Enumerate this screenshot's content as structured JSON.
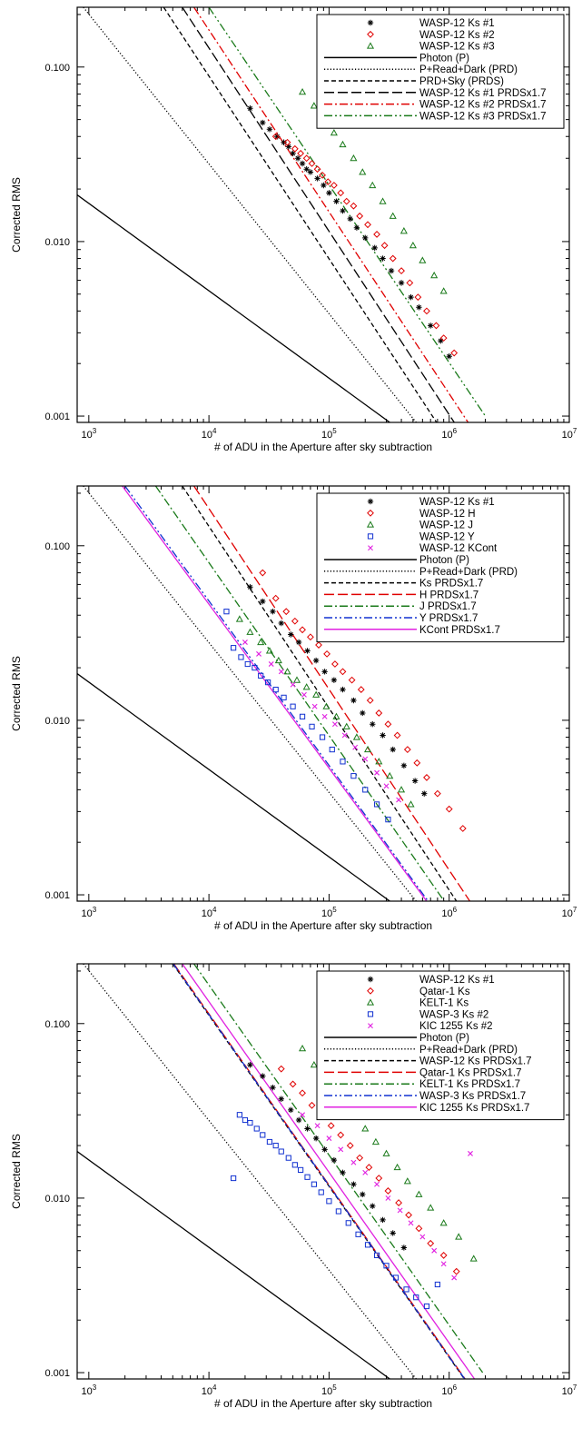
{
  "chart_data": [
    {
      "type": "scatter",
      "xlabel": "# of ADU in the Aperture after sky subtraction",
      "ylabel": "Corrected RMS",
      "x_scale": "log",
      "y_scale": "log",
      "xlim": [
        800,
        10000000
      ],
      "ylim": [
        0.00092,
        0.22
      ],
      "x_tick_labels": [
        "10^3",
        "10^4",
        "10^5",
        "10^6",
        "10^7"
      ],
      "y_tick_labels": [
        "0.001",
        "0.010",
        "0.100"
      ],
      "legend_position": "top-right",
      "series": [
        {
          "name": "WASP-12 Ks #1",
          "kind": "points",
          "marker": "asterisk",
          "color": "#000000",
          "x": [
            22000,
            28000,
            32000,
            37000,
            42000,
            46000,
            50000,
            55000,
            60000,
            65000,
            70000,
            80000,
            90000,
            100000,
            115000,
            130000,
            150000,
            170000,
            200000,
            240000,
            280000,
            330000,
            400000,
            480000,
            560000,
            700000,
            850000,
            1000000
          ],
          "y": [
            0.058,
            0.048,
            0.044,
            0.04,
            0.037,
            0.035,
            0.032,
            0.03,
            0.028,
            0.026,
            0.025,
            0.023,
            0.021,
            0.019,
            0.017,
            0.015,
            0.0135,
            0.012,
            0.0105,
            0.0092,
            0.008,
            0.0068,
            0.0058,
            0.0048,
            0.0042,
            0.0033,
            0.0027,
            0.0022
          ]
        },
        {
          "name": "WASP-12 Ks #2",
          "kind": "points",
          "marker": "diamond",
          "color": "#e00000",
          "x": [
            36000,
            45000,
            52000,
            58000,
            65000,
            72000,
            80000,
            88000,
            98000,
            110000,
            125000,
            140000,
            160000,
            180000,
            210000,
            250000,
            290000,
            340000,
            400000,
            470000,
            550000,
            650000,
            780000,
            900000,
            1100000
          ],
          "y": [
            0.04,
            0.037,
            0.034,
            0.032,
            0.03,
            0.028,
            0.026,
            0.024,
            0.022,
            0.021,
            0.019,
            0.017,
            0.016,
            0.014,
            0.0125,
            0.011,
            0.0095,
            0.008,
            0.0068,
            0.0058,
            0.0048,
            0.004,
            0.0033,
            0.0028,
            0.0023
          ]
        },
        {
          "name": "WASP-12 Ks #3",
          "kind": "points",
          "marker": "triangle",
          "color": "#1a7a1a",
          "x": [
            60000,
            75000,
            90000,
            110000,
            130000,
            160000,
            190000,
            230000,
            280000,
            340000,
            420000,
            500000,
            600000,
            750000,
            900000
          ],
          "y": [
            0.072,
            0.06,
            0.05,
            0.042,
            0.036,
            0.03,
            0.025,
            0.021,
            0.017,
            0.014,
            0.0115,
            0.0095,
            0.0078,
            0.0064,
            0.0052
          ]
        },
        {
          "name": "Photon (P)",
          "kind": "line",
          "dash": "solid",
          "color": "#000000",
          "x": [
            800,
            350000
          ],
          "y": [
            0.0185,
            0.00088
          ]
        },
        {
          "name": "P+Read+Dark (PRD)",
          "kind": "line",
          "dash": "dotted",
          "color": "#000000",
          "x": [
            900,
            560000
          ],
          "y": [
            0.22,
            0.00088
          ]
        },
        {
          "name": "PRD+Sky (PRDS)",
          "kind": "line",
          "dash": "dashed",
          "color": "#000000",
          "x": [
            4200,
            820000
          ],
          "y": [
            0.22,
            0.00088
          ]
        },
        {
          "name": "WASP-12 Ks #1 PRDSx1.7",
          "kind": "line",
          "dash": "longdash",
          "color": "#000000",
          "x": [
            6000,
            1150000
          ],
          "y": [
            0.22,
            0.00088
          ]
        },
        {
          "name": "WASP-12 Ks #2 PRDSx1.7",
          "kind": "line",
          "dash": "dashdot",
          "color": "#e00000",
          "x": [
            7500,
            1500000
          ],
          "y": [
            0.22,
            0.00088
          ]
        },
        {
          "name": "WASP-12 Ks #3 PRDSx1.7",
          "kind": "line",
          "dash": "dashdotdot",
          "color": "#1a7a1a",
          "x": [
            10000,
            2000000
          ],
          "y": [
            0.22,
            0.001
          ]
        }
      ]
    },
    {
      "type": "scatter",
      "xlabel": "# of ADU in the Aperture after sky subtraction",
      "ylabel": "Corrected RMS",
      "x_scale": "log",
      "y_scale": "log",
      "xlim": [
        800,
        10000000
      ],
      "ylim": [
        0.00092,
        0.22
      ],
      "x_tick_labels": [
        "10^3",
        "10^4",
        "10^5",
        "10^6",
        "10^7"
      ],
      "y_tick_labels": [
        "0.001",
        "0.010",
        "0.100"
      ],
      "legend_position": "top-right",
      "series": [
        {
          "name": "WASP-12 Ks #1",
          "kind": "points",
          "marker": "asterisk",
          "color": "#000000",
          "x": [
            22000,
            28000,
            34000,
            40000,
            48000,
            56000,
            66000,
            78000,
            92000,
            110000,
            130000,
            160000,
            190000,
            230000,
            280000,
            340000,
            420000,
            520000,
            620000
          ],
          "y": [
            0.058,
            0.048,
            0.042,
            0.036,
            0.031,
            0.028,
            0.025,
            0.022,
            0.019,
            0.017,
            0.015,
            0.013,
            0.011,
            0.0095,
            0.0082,
            0.0068,
            0.0055,
            0.0045,
            0.0038
          ]
        },
        {
          "name": "WASP-12 H",
          "kind": "points",
          "marker": "diamond",
          "color": "#e00000",
          "x": [
            28000,
            36000,
            44000,
            52000,
            60000,
            70000,
            82000,
            96000,
            112000,
            130000,
            155000,
            185000,
            220000,
            260000,
            310000,
            370000,
            450000,
            540000,
            650000,
            800000,
            1000000,
            1300000
          ],
          "y": [
            0.07,
            0.05,
            0.042,
            0.037,
            0.033,
            0.03,
            0.027,
            0.024,
            0.021,
            0.019,
            0.017,
            0.015,
            0.013,
            0.011,
            0.0095,
            0.0082,
            0.0068,
            0.0057,
            0.0047,
            0.0038,
            0.0031,
            0.0024
          ]
        },
        {
          "name": "WASP-12 J",
          "kind": "points",
          "marker": "triangle",
          "color": "#1a7a1a",
          "x": [
            18000,
            22000,
            27000,
            32000,
            38000,
            45000,
            54000,
            65000,
            78000,
            95000,
            115000,
            140000,
            170000,
            210000,
            260000,
            320000,
            400000,
            480000
          ],
          "y": [
            0.038,
            0.032,
            0.028,
            0.025,
            0.022,
            0.019,
            0.017,
            0.0155,
            0.014,
            0.012,
            0.0105,
            0.0092,
            0.008,
            0.0068,
            0.0058,
            0.0048,
            0.004,
            0.0033
          ]
        },
        {
          "name": "WASP-12 Y",
          "kind": "points",
          "marker": "square",
          "color": "#1030d0",
          "x": [
            14000,
            16000,
            18500,
            21000,
            24000,
            27000,
            31000,
            36000,
            42000,
            50000,
            60000,
            72000,
            88000,
            106000,
            130000,
            160000,
            200000,
            250000,
            310000
          ],
          "y": [
            0.042,
            0.026,
            0.023,
            0.021,
            0.02,
            0.018,
            0.0165,
            0.015,
            0.0135,
            0.012,
            0.0105,
            0.0092,
            0.008,
            0.0068,
            0.0058,
            0.0048,
            0.004,
            0.0033,
            0.0027
          ]
        },
        {
          "name": "WASP-12 KCont",
          "kind": "points",
          "marker": "x",
          "color": "#e020e0",
          "x": [
            20000,
            26000,
            33000,
            40000,
            50000,
            62000,
            76000,
            92000,
            112000,
            135000,
            165000,
            200000,
            250000,
            300000,
            380000
          ],
          "y": [
            0.028,
            0.024,
            0.021,
            0.019,
            0.016,
            0.014,
            0.012,
            0.0105,
            0.0095,
            0.0082,
            0.007,
            0.006,
            0.005,
            0.0042,
            0.0035
          ]
        },
        {
          "name": "Photon (P)",
          "kind": "line",
          "dash": "solid",
          "color": "#000000",
          "x": [
            800,
            350000
          ],
          "y": [
            0.0185,
            0.00088
          ]
        },
        {
          "name": "P+Read+Dark (PRD)",
          "kind": "line",
          "dash": "dotted",
          "color": "#000000",
          "x": [
            900,
            560000
          ],
          "y": [
            0.22,
            0.00088
          ]
        },
        {
          "name": "Ks PRDSx1.7",
          "kind": "line",
          "dash": "dashed",
          "color": "#000000",
          "x": [
            6000,
            1200000
          ],
          "y": [
            0.22,
            0.00088
          ]
        },
        {
          "name": "H PRDSx1.7",
          "kind": "line",
          "dash": "longdash",
          "color": "#e00000",
          "x": [
            7500,
            1550000
          ],
          "y": [
            0.22,
            0.00088
          ]
        },
        {
          "name": "J PRDSx1.7",
          "kind": "line",
          "dash": "dashdot",
          "color": "#1a7a1a",
          "x": [
            3600,
            950000
          ],
          "y": [
            0.22,
            0.00088
          ]
        },
        {
          "name": "Y PRDSx1.7",
          "kind": "line",
          "dash": "dashdotdot",
          "color": "#1030d0",
          "x": [
            2000,
            700000
          ],
          "y": [
            0.22,
            0.00088
          ]
        },
        {
          "name": "KCont PRDSx1.7",
          "kind": "line",
          "dash": "solid",
          "color": "#e020e0",
          "x": [
            1900,
            680000
          ],
          "y": [
            0.22,
            0.00088
          ]
        }
      ]
    },
    {
      "type": "scatter",
      "xlabel": "# of ADU in the Aperture after sky subtraction",
      "ylabel": "Corrected RMS",
      "x_scale": "log",
      "y_scale": "log",
      "xlim": [
        800,
        10000000
      ],
      "ylim": [
        0.00092,
        0.22
      ],
      "x_tick_labels": [
        "10^3",
        "10^4",
        "10^5",
        "10^6",
        "10^7"
      ],
      "y_tick_labels": [
        "0.001",
        "0.010",
        "0.100"
      ],
      "legend_position": "top-right",
      "series": [
        {
          "name": "WASP-12 Ks #1",
          "kind": "points",
          "marker": "asterisk",
          "color": "#000000",
          "x": [
            22000,
            28000,
            34000,
            40000,
            48000,
            56000,
            66000,
            78000,
            92000,
            110000,
            130000,
            160000,
            190000,
            230000,
            280000,
            340000,
            420000
          ],
          "y": [
            0.058,
            0.05,
            0.043,
            0.037,
            0.032,
            0.028,
            0.025,
            0.022,
            0.019,
            0.0165,
            0.014,
            0.012,
            0.0105,
            0.009,
            0.0075,
            0.0063,
            0.0052
          ]
        },
        {
          "name": "Qatar-1 Ks",
          "kind": "points",
          "marker": "diamond",
          "color": "#e00000",
          "x": [
            40000,
            50000,
            60000,
            72000,
            86000,
            104000,
            125000,
            150000,
            180000,
            215000,
            260000,
            310000,
            380000,
            460000,
            560000,
            700000,
            900000,
            1150000
          ],
          "y": [
            0.055,
            0.045,
            0.04,
            0.034,
            0.03,
            0.026,
            0.023,
            0.02,
            0.017,
            0.015,
            0.013,
            0.011,
            0.0094,
            0.008,
            0.0067,
            0.0055,
            0.0047,
            0.0038
          ]
        },
        {
          "name": "KELT-1 Ks",
          "kind": "points",
          "marker": "triangle",
          "color": "#1a7a1a",
          "x": [
            60000,
            75000,
            92000,
            112000,
            135000,
            165000,
            200000,
            245000,
            300000,
            370000,
            450000,
            560000,
            700000,
            900000,
            1200000,
            1600000
          ],
          "y": [
            0.072,
            0.058,
            0.048,
            0.041,
            0.035,
            0.03,
            0.025,
            0.021,
            0.018,
            0.015,
            0.0125,
            0.0105,
            0.0088,
            0.0072,
            0.006,
            0.0045
          ]
        },
        {
          "name": "WASP-3 Ks #2",
          "kind": "points",
          "marker": "square",
          "color": "#1030d0",
          "x": [
            16000,
            18000,
            20000,
            22000,
            25000,
            28000,
            32000,
            36000,
            40000,
            46000,
            52000,
            58000,
            66000,
            75000,
            86000,
            100000,
            120000,
            145000,
            175000,
            210000,
            250000,
            300000,
            360000,
            440000,
            530000,
            650000,
            800000
          ],
          "y": [
            0.013,
            0.03,
            0.028,
            0.027,
            0.025,
            0.023,
            0.021,
            0.02,
            0.0185,
            0.017,
            0.0155,
            0.0145,
            0.0132,
            0.012,
            0.0108,
            0.0096,
            0.0084,
            0.0072,
            0.0062,
            0.0054,
            0.0047,
            0.0041,
            0.0035,
            0.003,
            0.0027,
            0.0024,
            0.0032
          ]
        },
        {
          "name": "KIC 1255 Ks #2",
          "kind": "points",
          "marker": "x",
          "color": "#e020e0",
          "x": [
            60000,
            80000,
            100000,
            125000,
            160000,
            200000,
            250000,
            310000,
            390000,
            480000,
            600000,
            750000,
            900000,
            1100000,
            1500000
          ],
          "y": [
            0.03,
            0.026,
            0.022,
            0.019,
            0.016,
            0.014,
            0.012,
            0.01,
            0.0085,
            0.0072,
            0.006,
            0.005,
            0.0042,
            0.0035,
            0.018
          ]
        },
        {
          "name": "Photon (P)",
          "kind": "line",
          "dash": "solid",
          "color": "#000000",
          "x": [
            800,
            350000
          ],
          "y": [
            0.0185,
            0.00088
          ]
        },
        {
          "name": "P+Read+Dark (PRD)",
          "kind": "line",
          "dash": "dotted",
          "color": "#000000",
          "x": [
            900,
            560000
          ],
          "y": [
            0.22,
            0.00088
          ]
        },
        {
          "name": "WASP-12 Ks PRDSx1.7",
          "kind": "line",
          "dash": "dashed",
          "color": "#000000",
          "x": [
            5000,
            1400000
          ],
          "y": [
            0.22,
            0.00088
          ]
        },
        {
          "name": "Qatar-1 Ks PRDSx1.7",
          "kind": "line",
          "dash": "longdash",
          "color": "#e00000",
          "x": [
            5100,
            1420000
          ],
          "y": [
            0.22,
            0.00088
          ]
        },
        {
          "name": "KELT-1 Ks PRDSx1.7",
          "kind": "line",
          "dash": "dashdot",
          "color": "#1a7a1a",
          "x": [
            7500,
            1900000
          ],
          "y": [
            0.22,
            0.001
          ]
        },
        {
          "name": "WASP-3 Ks PRDSx1.7",
          "kind": "line",
          "dash": "dashdotdot",
          "color": "#1030d0",
          "x": [
            5050,
            1410000
          ],
          "y": [
            0.22,
            0.00088
          ]
        },
        {
          "name": "KIC 1255 Ks PRDSx1.7",
          "kind": "line",
          "dash": "solid",
          "color": "#e020e0",
          "x": [
            6000,
            1700000
          ],
          "y": [
            0.22,
            0.00088
          ]
        }
      ]
    }
  ]
}
